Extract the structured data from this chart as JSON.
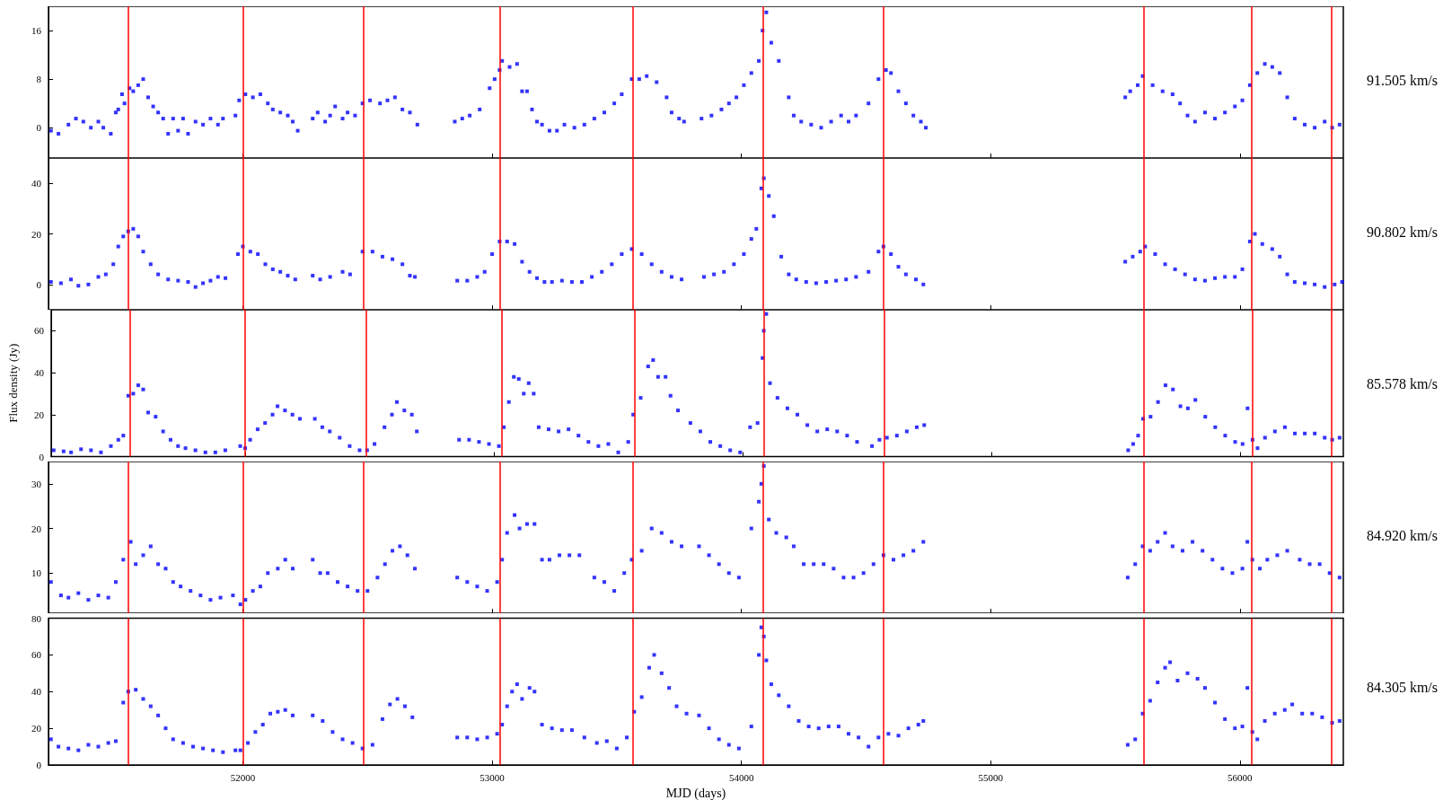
{
  "chart_data": [
    {
      "type": "scatter",
      "color": "#0000ff",
      "marker": "square",
      "grid": false,
      "tick_labels": "y",
      "xlim": [
        51220,
        56415
      ],
      "xticks": [
        52000,
        53000,
        54000,
        55000,
        56000
      ],
      "ylim": [
        -5,
        20
      ],
      "yticks": [
        0,
        8,
        16
      ],
      "annotations": [
        "91.505 km/s"
      ],
      "ref_lines": [
        {
          "axis": "x",
          "value": 51538,
          "color": "#ff0000"
        },
        {
          "axis": "x",
          "value": 52000,
          "color": "#ff0000"
        },
        {
          "axis": "x",
          "value": 52485,
          "color": "#ff0000"
        },
        {
          "axis": "x",
          "value": 53030,
          "color": "#ff0000"
        },
        {
          "axis": "x",
          "value": 53566,
          "color": "#ff0000"
        },
        {
          "axis": "x",
          "value": 54085,
          "color": "#ff0000"
        },
        {
          "axis": "x",
          "value": 54569,
          "color": "#ff0000"
        },
        {
          "axis": "x",
          "value": 55614,
          "color": "#ff0000"
        },
        {
          "axis": "x",
          "value": 56048,
          "color": "#ff0000"
        },
        {
          "axis": "x",
          "value": 56366,
          "color": "#ff0000"
        }
      ],
      "x": [
        51230,
        51260,
        51300,
        51330,
        51360,
        51390,
        51420,
        51440,
        51470,
        51490,
        51500,
        51515,
        51525,
        51545,
        51560,
        51580,
        51600,
        51620,
        51640,
        51660,
        51680,
        51700,
        51720,
        51740,
        51760,
        51780,
        51810,
        51840,
        51870,
        51900,
        51920,
        51970,
        51985,
        52010,
        52040,
        52070,
        52100,
        52120,
        52150,
        52180,
        52200,
        52220,
        52280,
        52300,
        52330,
        52350,
        52370,
        52400,
        52420,
        52450,
        52480,
        52510,
        52550,
        52580,
        52610,
        52640,
        52670,
        52700,
        52850,
        52880,
        52910,
        52950,
        52990,
        53010,
        53030,
        53040,
        53070,
        53100,
        53120,
        53140,
        53160,
        53180,
        53200,
        53230,
        53260,
        53290,
        53330,
        53370,
        53410,
        53450,
        53490,
        53520,
        53560,
        53590,
        53620,
        53660,
        53700,
        53720,
        53750,
        53770,
        53840,
        53880,
        53920,
        53950,
        53980,
        54010,
        54040,
        54070,
        54085,
        54100,
        54120,
        54150,
        54190,
        54210,
        54240,
        54280,
        54320,
        54360,
        54400,
        54430,
        54460,
        54510,
        54550,
        54580,
        54600,
        54630,
        54660,
        54690,
        54720,
        54740,
        55540,
        55560,
        55590,
        55610,
        55650,
        55690,
        55730,
        55760,
        55790,
        55820,
        55860,
        55900,
        55940,
        55980,
        56010,
        56040,
        56070,
        56100,
        56130,
        56160,
        56190,
        56220,
        56260,
        56300,
        56340,
        56370,
        56400
      ],
      "values": [
        -0.5,
        -1,
        0.5,
        1.5,
        1,
        0,
        1,
        0,
        -1,
        2.5,
        3,
        5.5,
        4,
        6.5,
        6,
        7,
        8,
        5,
        3.5,
        2.5,
        1.5,
        -1,
        1.5,
        -0.5,
        1.5,
        -1,
        1,
        0.5,
        1.5,
        0.5,
        1.5,
        2,
        4.5,
        5.5,
        5,
        5.5,
        4,
        3,
        2.5,
        2,
        1,
        -0.5,
        1.5,
        2.5,
        1,
        2,
        3.5,
        1.5,
        2.5,
        2,
        4,
        4.5,
        4,
        4.5,
        5,
        3,
        2.5,
        0.5,
        1,
        1.5,
        2,
        3,
        6.5,
        8,
        9.5,
        11,
        10,
        10.5,
        6,
        6,
        3,
        1,
        0.5,
        -0.5,
        -0.5,
        0.5,
        0,
        0.5,
        1.5,
        2.5,
        4,
        5.5,
        8,
        8,
        8.5,
        7.5,
        5,
        2.5,
        1.5,
        1,
        1.5,
        2,
        3,
        4,
        5,
        7,
        9,
        11,
        16,
        19,
        14,
        11,
        5,
        2,
        1,
        0.5,
        0,
        1,
        2,
        1,
        2,
        4,
        8,
        9.5,
        9,
        6,
        4,
        2,
        1,
        0,
        5,
        6,
        7,
        8.5,
        7,
        6,
        5.5,
        4,
        2,
        1,
        2.5,
        1.5,
        2.5,
        3.5,
        4.5,
        7,
        9,
        10.5,
        10,
        9,
        5,
        1.5,
        0.5,
        0,
        1,
        0,
        0.5
      ]
    },
    {
      "type": "scatter",
      "color": "#0000ff",
      "marker": "square",
      "grid": false,
      "tick_labels": "y",
      "xlim": [
        51220,
        56415
      ],
      "xticks": [
        52000,
        53000,
        54000,
        55000,
        56000
      ],
      "ylim": [
        -10,
        50
      ],
      "yticks": [
        0,
        20,
        40
      ],
      "annotations": [
        "90.802 km/s"
      ],
      "ref_lines": [
        {
          "axis": "x",
          "value": 51538,
          "color": "#ff0000"
        },
        {
          "axis": "x",
          "value": 52000,
          "color": "#ff0000"
        },
        {
          "axis": "x",
          "value": 52485,
          "color": "#ff0000"
        },
        {
          "axis": "x",
          "value": 53030,
          "color": "#ff0000"
        },
        {
          "axis": "x",
          "value": 53566,
          "color": "#ff0000"
        },
        {
          "axis": "x",
          "value": 54085,
          "color": "#ff0000"
        },
        {
          "axis": "x",
          "value": 54569,
          "color": "#ff0000"
        },
        {
          "axis": "x",
          "value": 55614,
          "color": "#ff0000"
        },
        {
          "axis": "x",
          "value": 56048,
          "color": "#ff0000"
        },
        {
          "axis": "x",
          "value": 56366,
          "color": "#ff0000"
        }
      ],
      "x": [
        51230,
        51270,
        51310,
        51340,
        51380,
        51420,
        51450,
        51480,
        51500,
        51520,
        51540,
        51560,
        51580,
        51600,
        51630,
        51660,
        51700,
        51740,
        51780,
        51810,
        51840,
        51870,
        51900,
        51930,
        51980,
        52000,
        52030,
        52060,
        52090,
        52120,
        52150,
        52180,
        52210,
        52280,
        52310,
        52350,
        52400,
        52430,
        52480,
        52520,
        52560,
        52600,
        52640,
        52670,
        52690,
        52860,
        52900,
        52940,
        52970,
        53000,
        53030,
        53060,
        53090,
        53120,
        53150,
        53180,
        53210,
        53240,
        53280,
        53320,
        53360,
        53400,
        53440,
        53480,
        53520,
        53560,
        53600,
        53640,
        53680,
        53720,
        53760,
        53850,
        53890,
        53930,
        53970,
        54010,
        54040,
        54060,
        54080,
        54090,
        54110,
        54130,
        54160,
        54190,
        54220,
        54260,
        54300,
        54340,
        54380,
        54420,
        54460,
        54510,
        54550,
        54570,
        54600,
        54630,
        54660,
        54700,
        54730,
        55540,
        55570,
        55600,
        55620,
        55660,
        55700,
        55740,
        55780,
        55820,
        55860,
        55900,
        55940,
        55980,
        56010,
        56040,
        56060,
        56090,
        56130,
        56160,
        56190,
        56220,
        56260,
        56300,
        56340,
        56380,
        56410
      ],
      "values": [
        1,
        0.5,
        2,
        -0.5,
        0,
        3,
        4,
        8,
        15,
        19,
        21,
        22,
        19,
        13,
        8,
        4,
        2,
        1.5,
        1,
        -1,
        0.5,
        1.5,
        3,
        2.5,
        12,
        15,
        13,
        12,
        8,
        6,
        5,
        3.5,
        2,
        3.5,
        2,
        3,
        5,
        4,
        13,
        13,
        11,
        10,
        8,
        3.5,
        3,
        1.5,
        1.5,
        3,
        5,
        12,
        17,
        17,
        16,
        9,
        5,
        2.5,
        1,
        1,
        1.5,
        1,
        1,
        3,
        5,
        8,
        12,
        14,
        12,
        8,
        5,
        3,
        2,
        3,
        4,
        5,
        8,
        12,
        18,
        22,
        38,
        42,
        35,
        27,
        11,
        4,
        2,
        1,
        0.5,
        1,
        1.5,
        2,
        3,
        5,
        13,
        15,
        12,
        7,
        4,
        2,
        0,
        9,
        11,
        13,
        15,
        12,
        8,
        6,
        4,
        2,
        1.5,
        2.5,
        3,
        3,
        6,
        17,
        20,
        16,
        14,
        11,
        4,
        1,
        0.5,
        0,
        -1,
        0,
        1
      ]
    },
    {
      "type": "scatter",
      "color": "#0000ff",
      "marker": "square",
      "grid": false,
      "tick_labels": "y",
      "xlim": [
        51220,
        56415
      ],
      "xticks": [
        52000,
        53000,
        54000,
        55000,
        56000
      ],
      "ylim": [
        0,
        70
      ],
      "yticks": [
        0,
        20,
        40,
        60
      ],
      "ylabel": "Flux density (Jy)",
      "annotations": [
        "85.578 km/s"
      ],
      "ref_lines": [
        {
          "axis": "x",
          "value": 51538,
          "color": "#ff0000"
        },
        {
          "axis": "x",
          "value": 52000,
          "color": "#ff0000"
        },
        {
          "axis": "x",
          "value": 52485,
          "color": "#ff0000"
        },
        {
          "axis": "x",
          "value": 53030,
          "color": "#ff0000"
        },
        {
          "axis": "x",
          "value": 53566,
          "color": "#ff0000"
        },
        {
          "axis": "x",
          "value": 54085,
          "color": "#ff0000"
        },
        {
          "axis": "x",
          "value": 54569,
          "color": "#ff0000"
        },
        {
          "axis": "x",
          "value": 55614,
          "color": "#ff0000"
        },
        {
          "axis": "x",
          "value": 56048,
          "color": "#ff0000"
        },
        {
          "axis": "x",
          "value": 56366,
          "color": "#ff0000"
        }
      ],
      "x": [
        51230,
        51270,
        51300,
        51340,
        51380,
        51420,
        51460,
        51490,
        51510,
        51530,
        51550,
        51570,
        51590,
        51610,
        51640,
        51670,
        51700,
        51730,
        51760,
        51800,
        51840,
        51880,
        51920,
        51980,
        52000,
        52020,
        52050,
        52080,
        52110,
        52130,
        52160,
        52190,
        52220,
        52280,
        52310,
        52340,
        52380,
        52420,
        52460,
        52490,
        52520,
        52560,
        52590,
        52610,
        52640,
        52670,
        52690,
        52860,
        52900,
        52940,
        52980,
        53020,
        53040,
        53060,
        53080,
        53100,
        53120,
        53140,
        53160,
        53180,
        53220,
        53260,
        53300,
        53340,
        53380,
        53420,
        53460,
        53500,
        53540,
        53560,
        53590,
        53620,
        53640,
        53660,
        53690,
        53710,
        53740,
        53790,
        53830,
        53870,
        53910,
        53950,
        53990,
        54030,
        54060,
        54080,
        54085,
        54095,
        54110,
        54140,
        54180,
        54220,
        54260,
        54300,
        54340,
        54380,
        54420,
        54460,
        54520,
        54550,
        54580,
        54620,
        54660,
        54700,
        54730,
        55550,
        55570,
        55590,
        55610,
        55640,
        55670,
        55700,
        55730,
        55760,
        55790,
        55820,
        55860,
        55900,
        55940,
        55980,
        56010,
        56030,
        56050,
        56070,
        56100,
        56140,
        56180,
        56220,
        56260,
        56300,
        56340,
        56370,
        56400
      ],
      "values": [
        3,
        2.5,
        2,
        3.5,
        3,
        2,
        5,
        8,
        10,
        29,
        30,
        34,
        32,
        21,
        19,
        12,
        8,
        5,
        4,
        3,
        2,
        2,
        3,
        5,
        4,
        8,
        13,
        16,
        20,
        24,
        22,
        20,
        18,
        18,
        14,
        12,
        9,
        5,
        3,
        3,
        6,
        14,
        20,
        26,
        22,
        20,
        12,
        8,
        8,
        7,
        6,
        5,
        14,
        26,
        38,
        37,
        30,
        35,
        30,
        14,
        13,
        12,
        13,
        10,
        7,
        5,
        6,
        2,
        7,
        20,
        28,
        43,
        46,
        38,
        38,
        29,
        22,
        16,
        12,
        7,
        5,
        3,
        2,
        14,
        16,
        47,
        60,
        68,
        35,
        28,
        23,
        20,
        15,
        12,
        13,
        12,
        10,
        7,
        5,
        8,
        9,
        10,
        12,
        14,
        15,
        3,
        6,
        10,
        18,
        19,
        26,
        34,
        32,
        24,
        23,
        27,
        19,
        14,
        10,
        7,
        6,
        23,
        8,
        4,
        9,
        12,
        14,
        11,
        11,
        11,
        9,
        8,
        9
      ]
    },
    {
      "type": "scatter",
      "color": "#0000ff",
      "marker": "square",
      "grid": false,
      "tick_labels": "y",
      "xlim": [
        51220,
        56415
      ],
      "xticks": [
        52000,
        53000,
        54000,
        55000,
        56000
      ],
      "ylim": [
        1,
        35
      ],
      "yticks": [
        10,
        20,
        30
      ],
      "annotations": [
        "84.920 km/s"
      ],
      "ref_lines": [
        {
          "axis": "x",
          "value": 51538,
          "color": "#ff0000"
        },
        {
          "axis": "x",
          "value": 52000,
          "color": "#ff0000"
        },
        {
          "axis": "x",
          "value": 52485,
          "color": "#ff0000"
        },
        {
          "axis": "x",
          "value": 53030,
          "color": "#ff0000"
        },
        {
          "axis": "x",
          "value": 53566,
          "color": "#ff0000"
        },
        {
          "axis": "x",
          "value": 54085,
          "color": "#ff0000"
        },
        {
          "axis": "x",
          "value": 54569,
          "color": "#ff0000"
        },
        {
          "axis": "x",
          "value": 55614,
          "color": "#ff0000"
        },
        {
          "axis": "x",
          "value": 56048,
          "color": "#ff0000"
        },
        {
          "axis": "x",
          "value": 56366,
          "color": "#ff0000"
        }
      ],
      "x": [
        51230,
        51270,
        51300,
        51340,
        51380,
        51420,
        51460,
        51490,
        51520,
        51550,
        51570,
        51600,
        51630,
        51660,
        51690,
        51720,
        51750,
        51790,
        51830,
        51870,
        51910,
        51960,
        51990,
        52010,
        52040,
        52070,
        52100,
        52140,
        52170,
        52200,
        52280,
        52310,
        52340,
        52380,
        52420,
        52460,
        52500,
        52540,
        52570,
        52600,
        52630,
        52660,
        52690,
        52860,
        52900,
        52940,
        52980,
        53020,
        53040,
        53060,
        53090,
        53110,
        53140,
        53170,
        53200,
        53230,
        53270,
        53310,
        53350,
        53410,
        53450,
        53490,
        53530,
        53560,
        53600,
        53640,
        53680,
        53720,
        53760,
        53830,
        53870,
        53910,
        53950,
        53990,
        54040,
        54070,
        54080,
        54090,
        54110,
        54140,
        54180,
        54210,
        54250,
        54290,
        54330,
        54370,
        54410,
        54450,
        54490,
        54530,
        54570,
        54610,
        54650,
        54690,
        54730,
        55550,
        55580,
        55610,
        55640,
        55670,
        55700,
        55730,
        55770,
        55810,
        55850,
        55890,
        55930,
        55970,
        56010,
        56030,
        56050,
        56080,
        56110,
        56150,
        56190,
        56240,
        56280,
        56320,
        56360,
        56400
      ],
      "values": [
        8,
        5,
        4.5,
        5.5,
        4,
        5,
        4.5,
        8,
        13,
        17,
        12,
        14,
        16,
        12,
        11,
        8,
        7,
        6,
        5,
        4,
        4.5,
        5,
        3,
        4,
        6,
        7,
        10,
        11,
        13,
        11,
        13,
        10,
        10,
        8,
        7,
        6,
        6,
        9,
        12,
        15,
        16,
        14,
        11,
        9,
        8,
        7,
        6,
        8,
        13,
        19,
        23,
        20,
        21,
        21,
        13,
        13,
        14,
        14,
        14,
        9,
        8,
        6,
        10,
        13,
        15,
        20,
        19,
        17,
        16,
        16,
        14,
        12,
        10,
        9,
        20,
        26,
        30,
        34,
        22,
        19,
        18,
        16,
        12,
        12,
        12,
        11,
        9,
        9,
        10,
        12,
        14,
        13,
        14,
        15,
        17,
        9,
        12,
        16,
        15,
        17,
        19,
        16,
        15,
        17,
        15,
        13,
        11,
        10,
        11,
        17,
        13,
        11,
        13,
        14,
        15,
        13,
        12,
        12,
        10,
        9
      ]
    },
    {
      "type": "scatter",
      "color": "#0000ff",
      "marker": "square",
      "grid": false,
      "xlim": [
        51220,
        56415
      ],
      "xticks": [
        52000,
        53000,
        54000,
        55000,
        56000
      ],
      "ylim": [
        0,
        80
      ],
      "yticks": [
        0,
        20,
        40,
        60,
        80
      ],
      "xlabel": "MJD (days)",
      "annotations": [
        "84.305 km/s"
      ],
      "ref_lines": [
        {
          "axis": "x",
          "value": 51538,
          "color": "#ff0000"
        },
        {
          "axis": "x",
          "value": 52000,
          "color": "#ff0000"
        },
        {
          "axis": "x",
          "value": 52485,
          "color": "#ff0000"
        },
        {
          "axis": "x",
          "value": 53030,
          "color": "#ff0000"
        },
        {
          "axis": "x",
          "value": 53566,
          "color": "#ff0000"
        },
        {
          "axis": "x",
          "value": 54085,
          "color": "#ff0000"
        },
        {
          "axis": "x",
          "value": 54569,
          "color": "#ff0000"
        },
        {
          "axis": "x",
          "value": 55614,
          "color": "#ff0000"
        },
        {
          "axis": "x",
          "value": 56048,
          "color": "#ff0000"
        },
        {
          "axis": "x",
          "value": 56366,
          "color": "#ff0000"
        }
      ],
      "x": [
        51230,
        51260,
        51300,
        51340,
        51380,
        51420,
        51460,
        51490,
        51520,
        51540,
        51570,
        51600,
        51630,
        51660,
        51690,
        51720,
        51760,
        51800,
        51840,
        51880,
        51920,
        51970,
        51990,
        52020,
        52050,
        52080,
        52110,
        52140,
        52170,
        52200,
        52280,
        52320,
        52360,
        52400,
        52440,
        52480,
        52520,
        52560,
        52590,
        52620,
        52650,
        52680,
        52860,
        52900,
        52940,
        52980,
        53020,
        53040,
        53060,
        53080,
        53100,
        53120,
        53150,
        53170,
        53200,
        53240,
        53280,
        53320,
        53370,
        53420,
        53460,
        53500,
        53540,
        53570,
        53600,
        53630,
        53650,
        53680,
        53710,
        53740,
        53780,
        53830,
        53870,
        53910,
        53950,
        53990,
        54040,
        54070,
        54080,
        54090,
        54100,
        54120,
        54150,
        54190,
        54230,
        54270,
        54310,
        54350,
        54390,
        54430,
        54470,
        54510,
        54550,
        54590,
        54630,
        54670,
        54710,
        54730,
        55550,
        55580,
        55610,
        55640,
        55670,
        55700,
        55720,
        55750,
        55790,
        55830,
        55860,
        55900,
        55940,
        55980,
        56010,
        56030,
        56050,
        56070,
        56100,
        56140,
        56180,
        56210,
        56250,
        56290,
        56330,
        56370,
        56400
      ],
      "values": [
        14,
        10,
        9,
        8,
        11,
        10,
        12,
        13,
        34,
        40,
        41,
        36,
        32,
        27,
        20,
        14,
        12,
        10,
        9,
        8,
        7,
        8,
        8,
        12,
        18,
        22,
        28,
        29,
        30,
        27,
        27,
        24,
        18,
        14,
        12,
        9,
        11,
        25,
        33,
        36,
        32,
        26,
        15,
        15,
        14,
        15,
        17,
        22,
        32,
        40,
        44,
        36,
        42,
        40,
        22,
        20,
        19,
        19,
        15,
        12,
        13,
        9,
        15,
        29,
        37,
        53,
        60,
        50,
        42,
        32,
        28,
        27,
        20,
        14,
        11,
        9,
        21,
        60,
        75,
        70,
        57,
        44,
        38,
        32,
        24,
        21,
        20,
        21,
        21,
        17,
        15,
        10,
        15,
        17,
        16,
        20,
        22,
        24,
        11,
        14,
        28,
        35,
        45,
        53,
        56,
        46,
        50,
        47,
        42,
        34,
        25,
        20,
        21,
        42,
        18,
        14,
        24,
        28,
        30,
        33,
        28,
        28,
        26,
        23,
        24
      ]
    }
  ]
}
